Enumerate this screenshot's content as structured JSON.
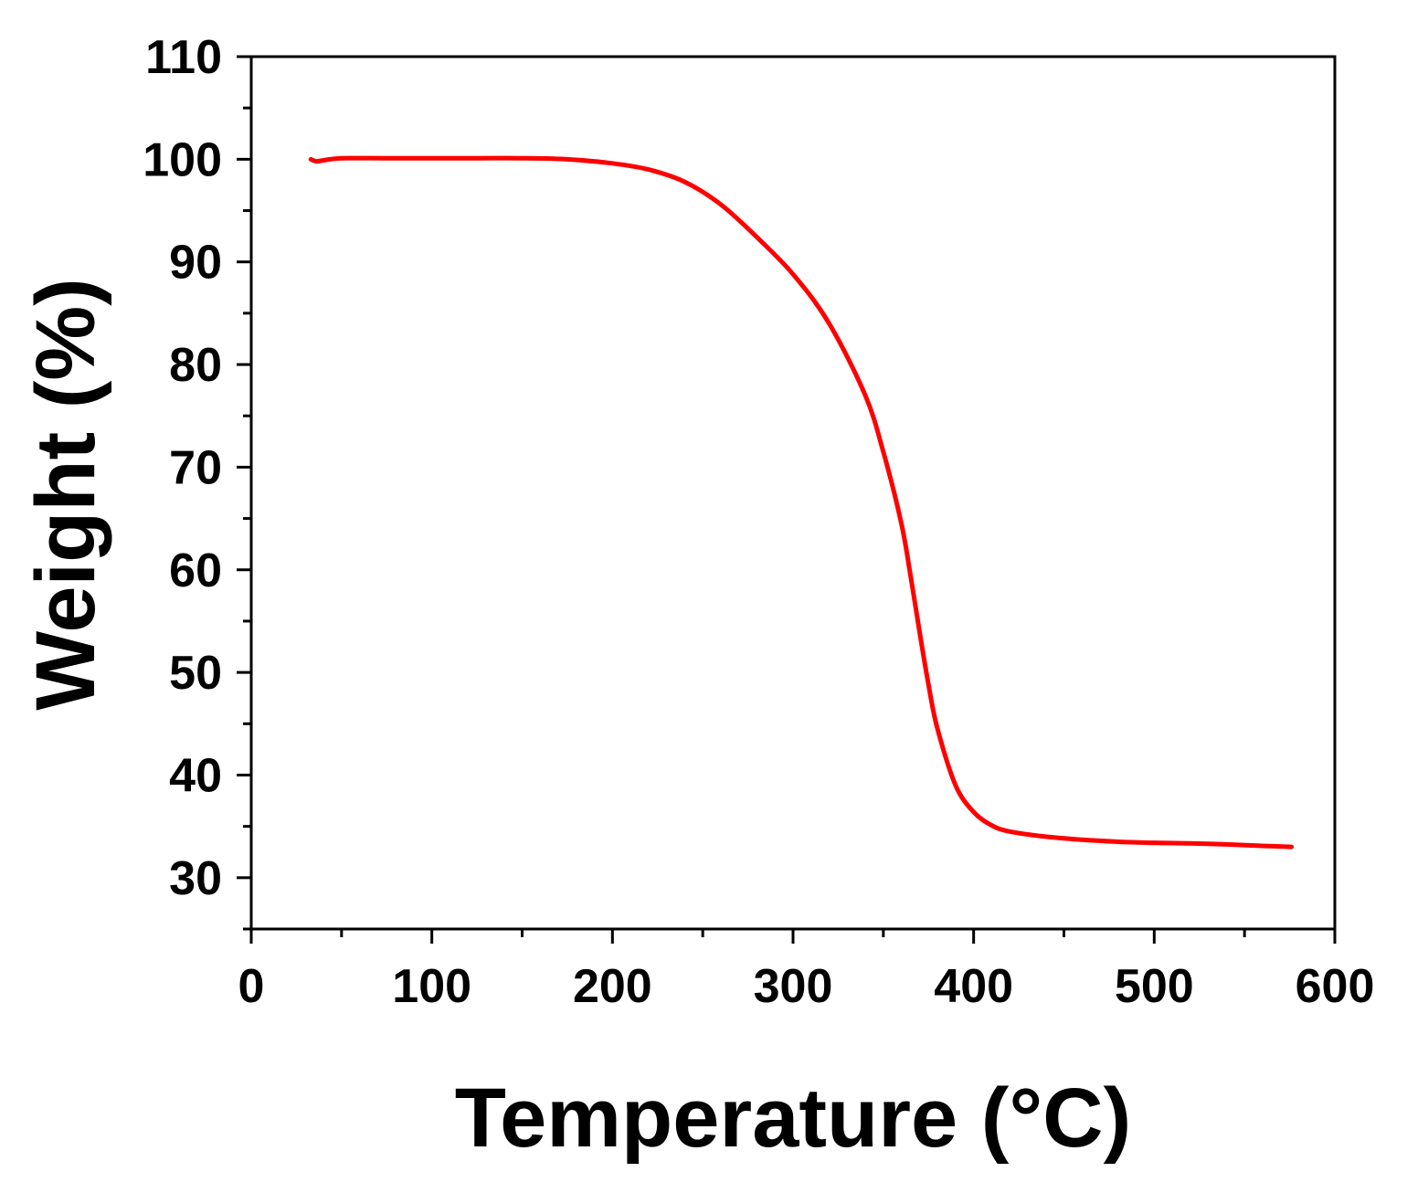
{
  "chart_data": {
    "type": "line",
    "xlabel": "Temperature (°C)",
    "ylabel": "Weight (%)",
    "xlim": [
      0,
      600
    ],
    "ylim": [
      25,
      110
    ],
    "x_ticks": [
      0,
      100,
      200,
      300,
      400,
      500,
      600
    ],
    "y_ticks": [
      30,
      40,
      50,
      60,
      70,
      80,
      90,
      100,
      110
    ],
    "grid": false,
    "legend": "none",
    "series": [
      {
        "color": "#ff0000",
        "x": [
          33,
          36,
          40,
          50,
          75,
          100,
          125,
          150,
          175,
          200,
          220,
          240,
          260,
          280,
          300,
          320,
          340,
          350,
          360,
          365,
          370,
          375,
          380,
          390,
          400,
          410,
          420,
          440,
          460,
          480,
          500,
          530,
          560,
          576
        ],
        "y": [
          100.0,
          99.8,
          99.9,
          100.1,
          100.1,
          100.1,
          100.1,
          100.1,
          100.0,
          99.6,
          99.0,
          97.8,
          95.6,
          92.4,
          88.8,
          84.0,
          77.0,
          71.5,
          64.5,
          59.5,
          54.0,
          48.8,
          44.5,
          39.0,
          36.4,
          35.1,
          34.5,
          34.0,
          33.7,
          33.5,
          33.4,
          33.3,
          33.1,
          33.0
        ]
      }
    ]
  }
}
